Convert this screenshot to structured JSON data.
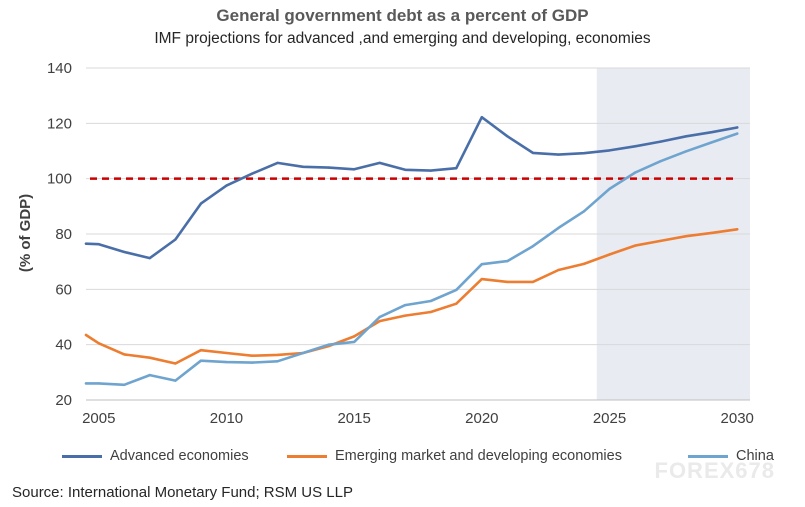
{
  "chart_data": {
    "type": "line",
    "title": "General government debt as a percent of GDP",
    "subtitle": "IMF projections for advanced ,and emerging and developing, economies",
    "ylabel": "(% of GDP)",
    "xlabel": "",
    "xlim": [
      2004.5,
      2030.5
    ],
    "ylim": [
      20,
      140
    ],
    "yticks": [
      20,
      40,
      60,
      80,
      100,
      120,
      140
    ],
    "xticks": [
      2005,
      2010,
      2015,
      2020,
      2025,
      2030
    ],
    "grid": "horizontal",
    "projection_shading": {
      "from": 2024.5,
      "to": 2030.5,
      "color": "#e8ebf2"
    },
    "reference_line": {
      "y": 100,
      "color": "#cc0000",
      "style": "dashed"
    },
    "series": [
      {
        "name": "Advanced economies",
        "color": "#4a6fa8",
        "x": [
          2004.5,
          2005,
          2006,
          2007,
          2008,
          2009,
          2010,
          2011,
          2012,
          2013,
          2014,
          2015,
          2016,
          2017,
          2018,
          2019,
          2020,
          2021,
          2022,
          2023,
          2024,
          2025,
          2026,
          2027,
          2028,
          2029,
          2030
        ],
        "values": [
          76.5,
          76.3,
          73.5,
          71.3,
          78,
          91,
          97.5,
          101.8,
          105.7,
          104.3,
          104,
          103.4,
          105.7,
          103.2,
          102.9,
          103.8,
          122.2,
          115.3,
          109.3,
          108.7,
          109.2,
          110.2,
          111.7,
          113.4,
          115.3,
          116.8,
          118.5
        ]
      },
      {
        "name": "Emerging market and developing economies",
        "color": "#ed7d31",
        "x": [
          2004.5,
          2005,
          2006,
          2007,
          2008,
          2009,
          2010,
          2011,
          2012,
          2013,
          2014,
          2015,
          2016,
          2017,
          2018,
          2019,
          2020,
          2021,
          2022,
          2023,
          2024,
          2025,
          2026,
          2027,
          2028,
          2029,
          2030
        ],
        "values": [
          43.5,
          40.5,
          36.5,
          35.3,
          33.2,
          38,
          37,
          36,
          36.3,
          37,
          39.5,
          43,
          48.5,
          50.5,
          51.8,
          54.8,
          63.7,
          62.7,
          62.7,
          67,
          69.2,
          72.6,
          75.8,
          77.5,
          79.2,
          80.4,
          81.7
        ]
      },
      {
        "name": "China",
        "color": "#6fa4cf",
        "x": [
          2004.5,
          2005,
          2006,
          2007,
          2008,
          2009,
          2010,
          2011,
          2012,
          2013,
          2014,
          2015,
          2016,
          2017,
          2018,
          2019,
          2020,
          2021,
          2022,
          2023,
          2024,
          2025,
          2026,
          2027,
          2028,
          2029,
          2030
        ],
        "values": [
          26,
          26,
          25.5,
          29,
          27,
          34.2,
          33.7,
          33.5,
          34,
          37,
          40,
          41,
          50,
          54.3,
          55.8,
          59.8,
          69.1,
          70.2,
          75.6,
          82.2,
          88.2,
          96.3,
          102.2,
          106.3,
          109.9,
          113.1,
          116.3
        ]
      }
    ]
  },
  "source": "Source: International Monetary Fund; RSM US LLP",
  "watermark": "FOREX678",
  "colors": {
    "advanced": "#4a6fa8",
    "emerging": "#ed7d31",
    "china": "#6fa4cf",
    "reference": "#cc0000",
    "projection_bg": "#e8ebf2",
    "grid": "#d9d9d9"
  }
}
